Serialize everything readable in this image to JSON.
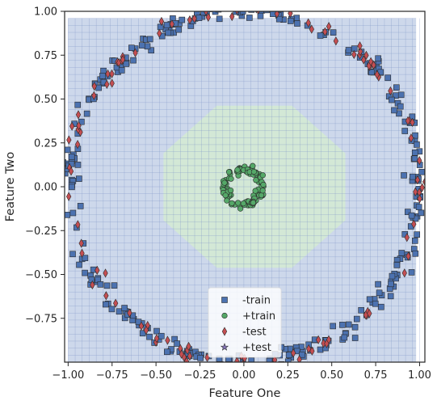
{
  "chart_data": {
    "type": "scatter",
    "title": "",
    "xlabel": "Feature One",
    "ylabel": "Feature Two",
    "xlim": [
      -1.02,
      1.03
    ],
    "ylim": [
      -1.0,
      1.0
    ],
    "xticks": [
      -1.0,
      -0.75,
      -0.5,
      -0.25,
      0.0,
      0.25,
      0.5,
      0.75,
      1.0
    ],
    "yticks": [
      -0.75,
      -0.5,
      -0.25,
      0.0,
      0.25,
      0.5,
      0.75,
      1.0
    ],
    "xtick_labels": [
      "−1.00",
      "−0.75",
      "−0.50",
      "−0.25",
      "0.00",
      "0.25",
      "0.50",
      "0.75",
      "1.00"
    ],
    "ytick_labels": [
      "−0.75",
      "−0.50",
      "−0.25",
      "0.00",
      "0.25",
      "0.50",
      "0.75",
      "1.00"
    ],
    "grid": false,
    "legend_position": "lower-center",
    "decision_regions": {
      "negative_region": {
        "color": "#cdd8eb",
        "x_range": [
          -1.0,
          0.98
        ],
        "y_range": [
          -1.0,
          0.96
        ]
      },
      "positive_region": {
        "color": "#d3e8d6",
        "shape": "octagon",
        "center": [
          0.06,
          0.0
        ],
        "rx": 0.56,
        "ry": 0.5,
        "mesh_step": 0.04
      }
    },
    "series": [
      {
        "name": "-train",
        "marker": "square",
        "color": "#4c72b0",
        "pattern": "ring",
        "radius": 1.0,
        "noise": 0.025,
        "count": 330
      },
      {
        "name": "+train",
        "marker": "circle",
        "color": "#55a868",
        "pattern": "ring",
        "radius": 0.1,
        "noise": 0.012,
        "count": 110
      },
      {
        "name": "-test",
        "marker": "diamond",
        "color": "#c44e52",
        "pattern": "ring",
        "radius": 1.0,
        "noise": 0.025,
        "count": 110
      },
      {
        "name": "+test",
        "marker": "star",
        "color": "#8172b2",
        "pattern": "ring",
        "radius": 0.1,
        "noise": 0.012,
        "count": 0
      }
    ]
  }
}
